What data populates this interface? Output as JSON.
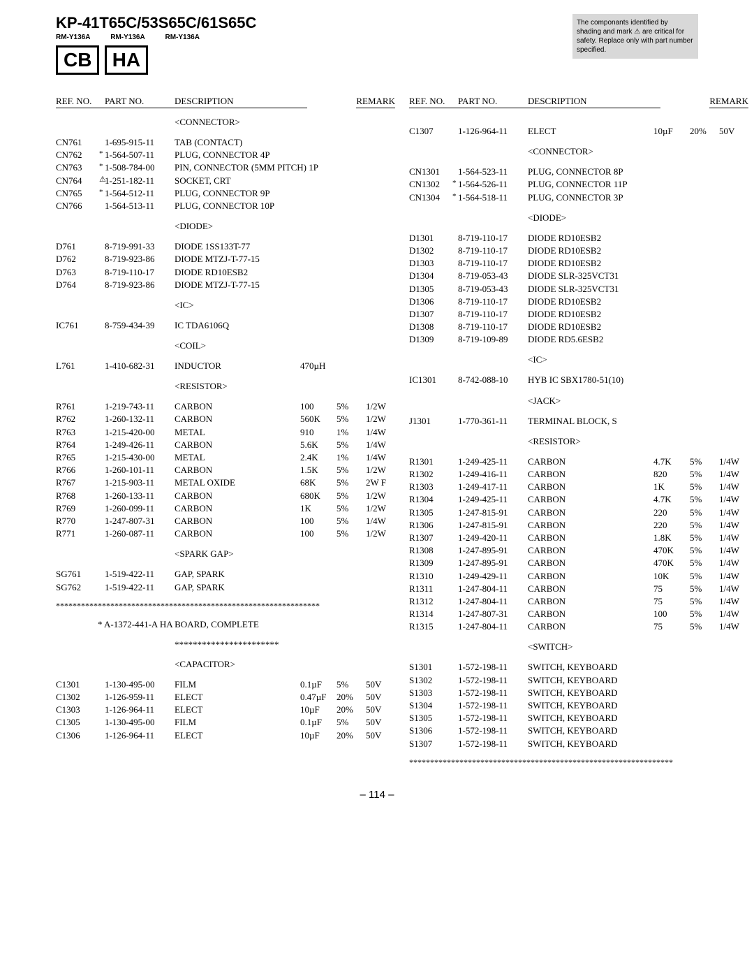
{
  "header": {
    "model": "KP-41T65C/53S65C/61S65C",
    "rm": [
      "RM-Y136A",
      "RM-Y136A",
      "RM-Y136A"
    ],
    "boxes": [
      "CB",
      "HA"
    ],
    "safety": "The componants identified by shading and mark ⚠ are critical for safety.\nReplace only with part number specified."
  },
  "column_headers": {
    "ref": "REF. NO.",
    "part": "PART NO.",
    "desc": "DESCRIPTION",
    "rem": "REMARK"
  },
  "left": {
    "sections": [
      {
        "title": "<CONNECTOR>",
        "rows": [
          {
            "ref": "CN761",
            "sym": "",
            "part": "1-695-915-11",
            "desc": "TAB (CONTACT)"
          },
          {
            "ref": "CN762",
            "sym": "*",
            "part": "1-564-507-11",
            "desc": "PLUG, CONNECTOR 4P"
          },
          {
            "ref": "CN763",
            "sym": "*",
            "part": "1-508-784-00",
            "desc": "PIN, CONNECTOR (5MM PITCH) 1P"
          },
          {
            "ref": "CN764",
            "sym": "⚠",
            "part": "1-251-182-11",
            "desc": "SOCKET, CRT"
          },
          {
            "ref": "CN765",
            "sym": "*",
            "part": "1-564-512-11",
            "desc": "PLUG, CONNECTOR 9P"
          },
          {
            "ref": "",
            "sym": "",
            "part": "",
            "desc": ""
          },
          {
            "ref": "CN766",
            "sym": "",
            "part": "1-564-513-11",
            "desc": "PLUG, CONNECTOR 10P"
          }
        ]
      },
      {
        "title": "<DIODE>",
        "rows": [
          {
            "ref": "D761",
            "sym": "",
            "part": "8-719-991-33",
            "desc": "DIODE 1SS133T-77"
          },
          {
            "ref": "D762",
            "sym": "",
            "part": "8-719-923-86",
            "desc": "DIODE MTZJ-T-77-15"
          },
          {
            "ref": "D763",
            "sym": "",
            "part": "8-719-110-17",
            "desc": "DIODE RD10ESB2"
          },
          {
            "ref": "D764",
            "sym": "",
            "part": "8-719-923-86",
            "desc": "DIODE MTZJ-T-77-15"
          }
        ]
      },
      {
        "title": "<IC>",
        "rows": [
          {
            "ref": "IC761",
            "sym": "",
            "part": "8-759-434-39",
            "desc": "IC TDA6106Q"
          }
        ]
      },
      {
        "title": "<COIL>",
        "rows": [
          {
            "ref": "L761",
            "sym": "",
            "part": "1-410-682-31",
            "desc": "INDUCTOR",
            "v1": "470µH"
          }
        ]
      },
      {
        "title": "<RESISTOR>",
        "rows": [
          {
            "ref": "R761",
            "sym": "",
            "part": "1-219-743-11",
            "desc": "CARBON",
            "v1": "100",
            "v2": "5%",
            "v3": "1/2W"
          },
          {
            "ref": "R762",
            "sym": "",
            "part": "1-260-132-11",
            "desc": "CARBON",
            "v1": "560K",
            "v2": "5%",
            "v3": "1/2W"
          },
          {
            "ref": "R763",
            "sym": "",
            "part": "1-215-420-00",
            "desc": "METAL",
            "v1": "910",
            "v2": "1%",
            "v3": "1/4W"
          },
          {
            "ref": "R764",
            "sym": "",
            "part": "1-249-426-11",
            "desc": "CARBON",
            "v1": "5.6K",
            "v2": "5%",
            "v3": "1/4W"
          },
          {
            "ref": "R765",
            "sym": "",
            "part": "1-215-430-00",
            "desc": "METAL",
            "v1": "2.4K",
            "v2": "1%",
            "v3": "1/4W"
          },
          {
            "ref": "",
            "sym": "",
            "part": "",
            "desc": ""
          },
          {
            "ref": "R766",
            "sym": "",
            "part": "1-260-101-11",
            "desc": "CARBON",
            "v1": "1.5K",
            "v2": "5%",
            "v3": "1/2W"
          },
          {
            "ref": "R767",
            "sym": "",
            "part": "1-215-903-11",
            "desc": "METAL OXIDE",
            "v1": "68K",
            "v2": "5%",
            "v3": "2W   F"
          },
          {
            "ref": "R768",
            "sym": "",
            "part": "1-260-133-11",
            "desc": "CARBON",
            "v1": "680K",
            "v2": "5%",
            "v3": "1/2W"
          },
          {
            "ref": "R769",
            "sym": "",
            "part": "1-260-099-11",
            "desc": "CARBON",
            "v1": "1K",
            "v2": "5%",
            "v3": "1/2W"
          },
          {
            "ref": "R770",
            "sym": "",
            "part": "1-247-807-31",
            "desc": "CARBON",
            "v1": "100",
            "v2": "5%",
            "v3": "1/4W"
          },
          {
            "ref": "",
            "sym": "",
            "part": "",
            "desc": ""
          },
          {
            "ref": "R771",
            "sym": "",
            "part": "1-260-087-11",
            "desc": "CARBON",
            "v1": "100",
            "v2": "5%",
            "v3": "1/2W"
          }
        ]
      },
      {
        "title": "<SPARK GAP>",
        "rows": [
          {
            "ref": "SG761",
            "sym": "",
            "part": "1-519-422-11",
            "desc": "GAP, SPARK"
          },
          {
            "ref": "SG762",
            "sym": "",
            "part": "1-519-422-11",
            "desc": "GAP, SPARK"
          }
        ]
      }
    ],
    "asterisks": "***************************************************************",
    "board": "*  A-1372-441-A  HA BOARD, COMPLETE",
    "board_stars": "***********************",
    "after_sections": [
      {
        "title": "<CAPACITOR>",
        "rows": [
          {
            "ref": "C1301",
            "sym": "",
            "part": "1-130-495-00",
            "desc": "FILM",
            "v1": "0.1µF",
            "v2": "5%",
            "v3": "50V"
          },
          {
            "ref": "C1302",
            "sym": "",
            "part": "1-126-959-11",
            "desc": "ELECT",
            "v1": "0.47µF",
            "v2": "20%",
            "v3": "50V"
          },
          {
            "ref": "C1303",
            "sym": "",
            "part": "1-126-964-11",
            "desc": "ELECT",
            "v1": "10µF",
            "v2": "20%",
            "v3": "50V"
          },
          {
            "ref": "C1305",
            "sym": "",
            "part": "1-130-495-00",
            "desc": "FILM",
            "v1": "0.1µF",
            "v2": "5%",
            "v3": "50V"
          },
          {
            "ref": "C1306",
            "sym": "",
            "part": "1-126-964-11",
            "desc": "ELECT",
            "v1": "10µF",
            "v2": "20%",
            "v3": "50V"
          }
        ]
      }
    ]
  },
  "right": {
    "pre_rows": [
      {
        "ref": "C1307",
        "sym": "",
        "part": "1-126-964-11",
        "desc": "ELECT",
        "v1": "10µF",
        "v2": "20%",
        "v3": "50V"
      }
    ],
    "sections": [
      {
        "title": "<CONNECTOR>",
        "rows": [
          {
            "ref": "CN1301",
            "sym": "",
            "part": "1-564-523-11",
            "desc": "PLUG, CONNECTOR 8P"
          },
          {
            "ref": "CN1302",
            "sym": "*",
            "part": "1-564-526-11",
            "desc": "PLUG, CONNECTOR 11P"
          },
          {
            "ref": "CN1304",
            "sym": "*",
            "part": "1-564-518-11",
            "desc": "PLUG, CONNECTOR 3P"
          }
        ]
      },
      {
        "title": "<DIODE>",
        "rows": [
          {
            "ref": "D1301",
            "sym": "",
            "part": "8-719-110-17",
            "desc": "DIODE RD10ESB2"
          },
          {
            "ref": "D1302",
            "sym": "",
            "part": "8-719-110-17",
            "desc": "DIODE RD10ESB2"
          },
          {
            "ref": "D1303",
            "sym": "",
            "part": "8-719-110-17",
            "desc": "DIODE RD10ESB2"
          },
          {
            "ref": "D1304",
            "sym": "",
            "part": "8-719-053-43",
            "desc": "DIODE SLR-325VCT31"
          },
          {
            "ref": "D1305",
            "sym": "",
            "part": "8-719-053-43",
            "desc": "DIODE SLR-325VCT31"
          },
          {
            "ref": "",
            "sym": "",
            "part": "",
            "desc": ""
          },
          {
            "ref": "D1306",
            "sym": "",
            "part": "8-719-110-17",
            "desc": "DIODE RD10ESB2"
          },
          {
            "ref": "D1307",
            "sym": "",
            "part": "8-719-110-17",
            "desc": "DIODE RD10ESB2"
          },
          {
            "ref": "D1308",
            "sym": "",
            "part": "8-719-110-17",
            "desc": "DIODE RD10ESB2"
          },
          {
            "ref": "D1309",
            "sym": "",
            "part": "8-719-109-89",
            "desc": "DIODE RD5.6ESB2"
          }
        ]
      },
      {
        "title": "<IC>",
        "rows": [
          {
            "ref": "IC1301",
            "sym": "",
            "part": "8-742-088-10",
            "desc": "HYB IC SBX1780-51(10)"
          }
        ]
      },
      {
        "title": "<JACK>",
        "rows": [
          {
            "ref": "J1301",
            "sym": "",
            "part": "1-770-361-11",
            "desc": "TERMINAL BLOCK, S"
          }
        ]
      },
      {
        "title": "<RESISTOR>",
        "rows": [
          {
            "ref": "R1301",
            "sym": "",
            "part": "1-249-425-11",
            "desc": "CARBON",
            "v1": "4.7K",
            "v2": "5%",
            "v3": "1/4W"
          },
          {
            "ref": "R1302",
            "sym": "",
            "part": "1-249-416-11",
            "desc": "CARBON",
            "v1": "820",
            "v2": "5%",
            "v3": "1/4W"
          },
          {
            "ref": "R1303",
            "sym": "",
            "part": "1-249-417-11",
            "desc": "CARBON",
            "v1": "1K",
            "v2": "5%",
            "v3": "1/4W"
          },
          {
            "ref": "R1304",
            "sym": "",
            "part": "1-249-425-11",
            "desc": "CARBON",
            "v1": "4.7K",
            "v2": "5%",
            "v3": "1/4W"
          },
          {
            "ref": "R1305",
            "sym": "",
            "part": "1-247-815-91",
            "desc": "CARBON",
            "v1": "220",
            "v2": "5%",
            "v3": "1/4W"
          },
          {
            "ref": "",
            "sym": "",
            "part": "",
            "desc": ""
          },
          {
            "ref": "R1306",
            "sym": "",
            "part": "1-247-815-91",
            "desc": "CARBON",
            "v1": "220",
            "v2": "5%",
            "v3": "1/4W"
          },
          {
            "ref": "R1307",
            "sym": "",
            "part": "1-249-420-11",
            "desc": "CARBON",
            "v1": "1.8K",
            "v2": "5%",
            "v3": "1/4W"
          },
          {
            "ref": "R1308",
            "sym": "",
            "part": "1-247-895-91",
            "desc": "CARBON",
            "v1": "470K",
            "v2": "5%",
            "v3": "1/4W"
          },
          {
            "ref": "R1309",
            "sym": "",
            "part": "1-247-895-91",
            "desc": "CARBON",
            "v1": "470K",
            "v2": "5%",
            "v3": "1/4W"
          },
          {
            "ref": "R1310",
            "sym": "",
            "part": "1-249-429-11",
            "desc": "CARBON",
            "v1": "10K",
            "v2": "5%",
            "v3": "1/4W"
          },
          {
            "ref": "",
            "sym": "",
            "part": "",
            "desc": ""
          },
          {
            "ref": "R1311",
            "sym": "",
            "part": "1-247-804-11",
            "desc": "CARBON",
            "v1": "75",
            "v2": "5%",
            "v3": "1/4W"
          },
          {
            "ref": "R1312",
            "sym": "",
            "part": "1-247-804-11",
            "desc": "CARBON",
            "v1": "75",
            "v2": "5%",
            "v3": "1/4W"
          },
          {
            "ref": "R1314",
            "sym": "",
            "part": "1-247-807-31",
            "desc": "CARBON",
            "v1": "100",
            "v2": "5%",
            "v3": "1/4W"
          },
          {
            "ref": "R1315",
            "sym": "",
            "part": "1-247-804-11",
            "desc": "CARBON",
            "v1": "75",
            "v2": "5%",
            "v3": "1/4W"
          }
        ]
      },
      {
        "title": "<SWITCH>",
        "rows": [
          {
            "ref": "S1301",
            "sym": "",
            "part": "1-572-198-11",
            "desc": "SWITCH, KEYBOARD"
          },
          {
            "ref": "S1302",
            "sym": "",
            "part": "1-572-198-11",
            "desc": "SWITCH, KEYBOARD"
          },
          {
            "ref": "S1303",
            "sym": "",
            "part": "1-572-198-11",
            "desc": "SWITCH, KEYBOARD"
          },
          {
            "ref": "S1304",
            "sym": "",
            "part": "1-572-198-11",
            "desc": "SWITCH, KEYBOARD"
          },
          {
            "ref": "S1305",
            "sym": "",
            "part": "1-572-198-11",
            "desc": "SWITCH, KEYBOARD"
          },
          {
            "ref": "",
            "sym": "",
            "part": "",
            "desc": ""
          },
          {
            "ref": "S1306",
            "sym": "",
            "part": "1-572-198-11",
            "desc": "SWITCH, KEYBOARD"
          },
          {
            "ref": "S1307",
            "sym": "",
            "part": "1-572-198-11",
            "desc": "SWITCH, KEYBOARD"
          }
        ]
      }
    ],
    "asterisks": "***************************************************************"
  },
  "pagenum": "– 114 –"
}
